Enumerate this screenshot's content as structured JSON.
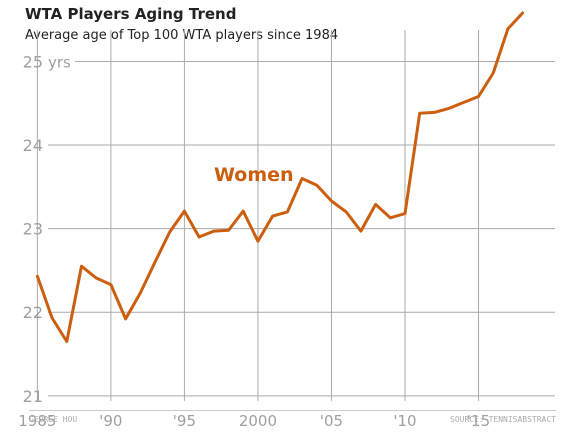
{
  "title": "WTA Players Aging Trend",
  "subtitle": "Average age of Top 100 WTA players since 1984",
  "footer": {
    "credit": "GEORGE HOU",
    "source": "SOURCE: TENNISABSTRACT"
  },
  "chart_data": {
    "type": "line",
    "title": "WTA Players Aging Trend",
    "subtitle": "Average age of Top 100 WTA players since 1984",
    "xlabel": "",
    "ylabel": "",
    "x_tick_labels": [
      "1985",
      "'90",
      "'95",
      "2000",
      "'05",
      "'10",
      "'15"
    ],
    "x_ticks": [
      1985,
      1990,
      1995,
      2000,
      2005,
      2010,
      2015
    ],
    "y_tick_labels": [
      "21",
      "22",
      "23",
      "24",
      "25"
    ],
    "y_ticks": [
      21,
      22,
      23,
      24,
      25
    ],
    "y_unit": "yrs",
    "xlim": [
      1984.5,
      2020.2
    ],
    "ylim": [
      20.95,
      25.4
    ],
    "grid": true,
    "line_color": "#cc5e10",
    "series": [
      {
        "name": "Women",
        "x": [
          1985,
          1986,
          1987,
          1988,
          1989,
          1990,
          1991,
          1992,
          1993,
          1994,
          1995,
          1996,
          1997,
          1998,
          1999,
          2000,
          2001,
          2002,
          2003,
          2004,
          2005,
          2006,
          2007,
          2008,
          2009,
          2010,
          2011,
          2012,
          2013,
          2014,
          2015,
          2016,
          2017,
          2018
        ],
        "values": [
          22.43,
          21.93,
          21.65,
          22.55,
          22.41,
          22.33,
          21.92,
          22.23,
          22.6,
          22.96,
          23.21,
          22.9,
          22.97,
          22.98,
          23.21,
          22.85,
          23.15,
          23.2,
          23.6,
          23.52,
          23.33,
          23.2,
          22.97,
          23.29,
          23.13,
          23.18,
          24.38,
          24.39,
          24.44,
          24.51,
          24.58,
          24.86,
          25.39,
          25.58
        ]
      }
    ]
  }
}
